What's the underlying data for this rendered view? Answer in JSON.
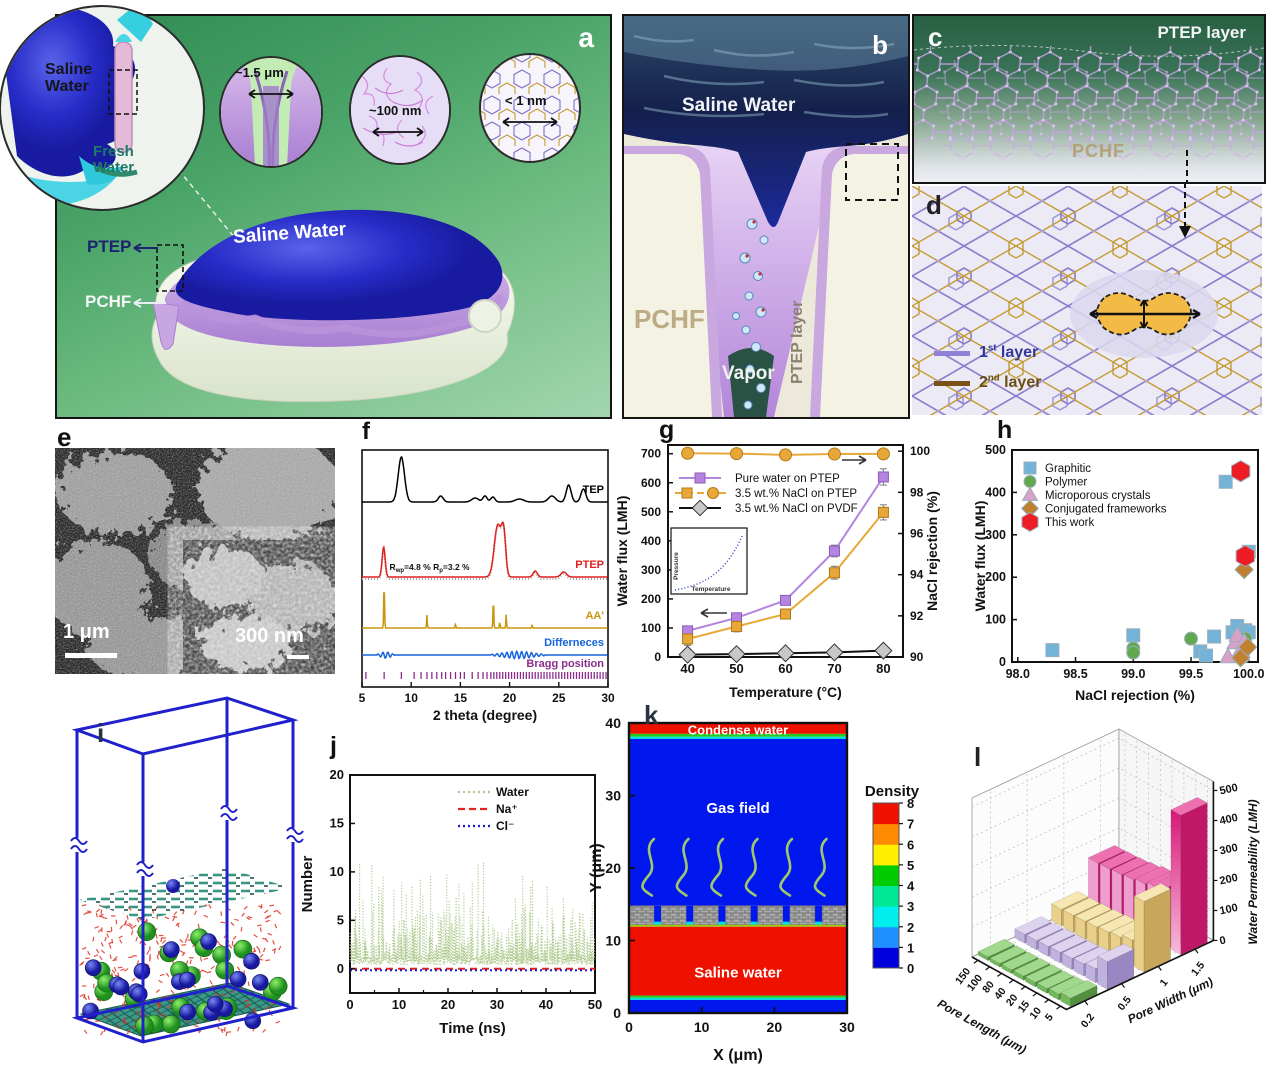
{
  "panel_a": {
    "letter": "a",
    "inset_circle": {
      "saline_label": "Saline\nWater",
      "fresh_label": "Fresh\nWater"
    },
    "zoom_insets": [
      {
        "label": "~1.5 μm"
      },
      {
        "label": "~100 nm"
      },
      {
        "label": "< 1 nm"
      }
    ],
    "membrane_label": "Saline Water",
    "ptep_label": "PTEP",
    "pchf_label": "PCHF"
  },
  "panel_b": {
    "letter": "b",
    "saline_label": "Saline Water",
    "pchf_label": "PCHF",
    "ptep_layer_label": "PTEP layer",
    "vapor_label": "Vapor"
  },
  "panel_c": {
    "letter": "c",
    "ptep_layer_label": "PTEP  layer",
    "pchf_label": "PCHF"
  },
  "panel_d": {
    "letter": "d",
    "legend": [
      {
        "num": "1",
        "sup": "st",
        "rest": " layer",
        "line_color": "#9080d8",
        "text_color": "#31389a"
      },
      {
        "num": "2",
        "sup": "nd",
        "rest": " layer",
        "line_color": "#7a5218",
        "text_color": "#6b4e16"
      }
    ]
  },
  "panel_e": {
    "letter": "e",
    "scalebar_main": "1 μm",
    "scalebar_inset": "300 nm"
  },
  "panel_f": {
    "letter": "f"
  },
  "panel_g": {
    "letter": "g"
  },
  "panel_h": {
    "letter": "h"
  },
  "panel_i": {
    "letter": "i"
  },
  "panel_j": {
    "letter": "j"
  },
  "panel_k": {
    "letter": "k"
  },
  "panel_l": {
    "letter": "l"
  },
  "chart_data": [
    {
      "id": "f",
      "type": "line",
      "xlabel": "2 theta (degree)",
      "xlim": [
        5,
        30
      ],
      "xticks": [
        5,
        10,
        15,
        20,
        25,
        30
      ],
      "traces": [
        {
          "name": "TEP",
          "color": "#000000",
          "baseline": 82,
          "peaks": [
            [
              9.0,
              45,
              0.45
            ],
            [
              13.0,
              6,
              0.35
            ],
            [
              16.5,
              4,
              0.5
            ],
            [
              17.5,
              6,
              0.3
            ],
            [
              18.3,
              5,
              0.3
            ],
            [
              21.0,
              3,
              0.6
            ],
            [
              24.3,
              6,
              0.5
            ],
            [
              26.0,
              17,
              0.35
            ],
            [
              27.5,
              13,
              0.35
            ]
          ]
        },
        {
          "name": "PTEP",
          "color": "#e02020",
          "fit_color": "#a0a0a0",
          "baseline": 157,
          "peaks": [
            [
              7.2,
              30,
              0.22
            ],
            [
              18.8,
              52,
              0.5
            ],
            [
              19.4,
              40,
              0.3
            ],
            [
              22.6,
              6,
              0.3
            ],
            [
              25.5,
              5,
              0.4
            ]
          ],
          "annotation": {
            "r1": "R",
            "r1sub": "wp",
            "r1val": "=4.8 %",
            "r2": "R",
            "r2sub": "p",
            "r2val": "=3.2 %"
          }
        },
        {
          "name": "AA'",
          "color": "#c8960c",
          "baseline": 208,
          "peaks": [
            [
              7.25,
              45,
              0.06
            ],
            [
              11.6,
              13,
              0.05
            ],
            [
              14.5,
              4,
              0.05
            ],
            [
              18.35,
              28,
              0.06
            ],
            [
              19.0,
              6,
              0.05
            ],
            [
              19.65,
              14,
              0.05
            ],
            [
              22.3,
              3,
              0.05
            ]
          ]
        },
        {
          "name": "Differneces",
          "color": "#1464dc",
          "baseline": 235,
          "wiggles": [
            [
              6.5,
              8.3,
              3.2
            ],
            [
              18.1,
              23.6,
              3.6
            ]
          ]
        }
      ],
      "bragg": {
        "name": "Bragg position",
        "color": "#8c2d8c",
        "positions": [
          5.4,
          7.25,
          9.0,
          10.3,
          11.0,
          11.6,
          12.1,
          12.6,
          13.1,
          13.5,
          14.0,
          14.5,
          15.0,
          15.4,
          16.2,
          16.8,
          17.3,
          17.7,
          18.1,
          18.4,
          18.7,
          19.0,
          19.3,
          19.6,
          19.9,
          20.2,
          20.5,
          20.8,
          21.1,
          21.4,
          21.7,
          22.0,
          22.3,
          22.6,
          22.9,
          23.2,
          23.5,
          23.8,
          24.1,
          24.4,
          24.7,
          25.0,
          25.3,
          25.6,
          25.9,
          26.2,
          26.5,
          26.8,
          27.1,
          27.4,
          27.7,
          28.0,
          28.3,
          28.6,
          28.9,
          29.2,
          29.5,
          29.8
        ]
      }
    },
    {
      "id": "g",
      "type": "line",
      "xlabel": "Temperature (°C)",
      "ylabel_left": "Water flux (LMH)",
      "ylabel_right": "NaCl rejection (%)",
      "x": [
        40,
        50,
        60,
        70,
        80
      ],
      "xlim": [
        36,
        84
      ],
      "ylim_left": [
        0,
        730
      ],
      "yticks_left": [
        0,
        100,
        200,
        300,
        400,
        500,
        600,
        700
      ],
      "ylim_right": [
        90,
        100.3
      ],
      "yticks_right": [
        90,
        92,
        94,
        96,
        98,
        100
      ],
      "series": [
        {
          "name": "Pure water on PTEP",
          "marker": "square",
          "color": "#b583e0",
          "axis": "left",
          "values": [
            90,
            135,
            195,
            365,
            620
          ],
          "err": [
            14,
            14,
            14,
            20,
            28
          ]
        },
        {
          "name": "3.5 wt.% NaCl on PTEP",
          "marker": "square",
          "color": "#e8a838",
          "axis": "left",
          "values": [
            62,
            105,
            148,
            290,
            498
          ],
          "err": [
            22,
            18,
            14,
            22,
            26
          ]
        },
        {
          "name": "3.5 wt.% NaCl on PTEP (rejection)",
          "marker": "circle",
          "color": "#e8a838",
          "axis": "right",
          "values": [
            99.9,
            99.88,
            99.82,
            99.86,
            99.87
          ]
        },
        {
          "name": "3.5 wt.% NaCl on PVDF",
          "marker": "diamond",
          "color": "#c8c8c8",
          "line_color": "#111111",
          "axis": "left",
          "values": [
            8,
            10,
            13,
            16,
            22
          ]
        }
      ],
      "legend": [
        "Pure water on PTEP",
        "3.5 wt.% NaCl on PTEP",
        "3.5 wt.% NaCl on PVDF"
      ],
      "inset": {
        "xlabel": "Temperature",
        "ylabel": "Pressure"
      }
    },
    {
      "id": "h",
      "type": "scatter",
      "xlabel": "NaCl rejection (%)",
      "ylabel": "Water flux (LMH)",
      "xlim": [
        97.95,
        100.08
      ],
      "xticks": [
        98.0,
        98.5,
        99.0,
        99.5,
        100.0
      ],
      "ylim": [
        0,
        500
      ],
      "yticks": [
        0,
        100,
        200,
        300,
        400,
        500
      ],
      "series": [
        {
          "name": "Graphitic",
          "marker": "square",
          "color": "#74b3d8",
          "points": [
            [
              98.3,
              28
            ],
            [
              99.0,
              63
            ],
            [
              99.58,
              25
            ],
            [
              99.63,
              15
            ],
            [
              99.7,
              60
            ],
            [
              99.8,
              425
            ],
            [
              99.86,
              70
            ],
            [
              99.9,
              85
            ],
            [
              99.93,
              60
            ],
            [
              99.97,
              75
            ],
            [
              100,
              260
            ],
            [
              100,
              70
            ]
          ]
        },
        {
          "name": "Polymer",
          "marker": "circle",
          "color": "#62a84e",
          "points": [
            [
              99.0,
              32
            ],
            [
              99.0,
              22
            ],
            [
              99.5,
              55
            ],
            [
              99.97,
              55
            ],
            [
              99.98,
              38
            ],
            [
              99.95,
              12
            ]
          ]
        },
        {
          "name": "Microporous crystals",
          "marker": "triangle",
          "color": "#d9a0c8",
          "points": [
            [
              99.82,
              12
            ],
            [
              99.88,
              45
            ],
            [
              99.9,
              62
            ],
            [
              99.93,
              28
            ],
            [
              99.96,
              48
            ]
          ]
        },
        {
          "name": "Conjugated frameworks",
          "marker": "diamond",
          "color": "#c08030",
          "points": [
            [
              99.96,
              218
            ],
            [
              99.93,
              10
            ],
            [
              99.99,
              35
            ]
          ]
        },
        {
          "name": "This work",
          "marker": "hexagon",
          "color": "#ee1c24",
          "points": [
            [
              99.93,
              450
            ],
            [
              99.97,
              250
            ]
          ]
        }
      ]
    },
    {
      "id": "j",
      "type": "line",
      "xlabel": "Time (ns)",
      "ylabel": "Number",
      "xlim": [
        0,
        50
      ],
      "xticks": [
        0,
        10,
        20,
        30,
        40,
        50
      ],
      "ylim": [
        -2.5,
        20
      ],
      "yticks": [
        0,
        5,
        10,
        15,
        20
      ],
      "series": [
        {
          "name": "Water",
          "color": "#aec98c",
          "style": "dotted",
          "range": [
            0,
            11
          ],
          "mean": 5
        },
        {
          "name": "Na⁺",
          "color": "#e8241c",
          "style": "dashed",
          "value": 0
        },
        {
          "name": "Cl⁻",
          "color": "#1818cc",
          "style": "dotted",
          "value": 0
        }
      ],
      "seed": 7
    },
    {
      "id": "k",
      "type": "heatmap",
      "xlabel": "X (μm)",
      "ylabel": "Y (μm)",
      "xlim": [
        0,
        30
      ],
      "xticks": [
        0,
        10,
        20,
        30
      ],
      "ylim": [
        0,
        40
      ],
      "yticks": [
        0,
        10,
        20,
        30,
        40
      ],
      "regions": [
        {
          "label": "Condense water",
          "y": [
            38.5,
            40
          ],
          "color": "#ee1100"
        },
        {
          "label": "",
          "y": [
            38.1,
            38.5
          ],
          "color": "#22cc22"
        },
        {
          "label": "",
          "y": [
            37.8,
            38.1
          ],
          "color": "#00e0e0"
        },
        {
          "label": "Gas field",
          "y": [
            14.8,
            37.8
          ],
          "color": "#0018ee"
        },
        {
          "label": "",
          "y": [
            11.9,
            12.2
          ],
          "color": "#9acd00"
        },
        {
          "label": "Saline water",
          "y": [
            2.4,
            11.9
          ],
          "color": "#ee1100"
        },
        {
          "label": "",
          "y": [
            2.1,
            2.4
          ],
          "color": "#22cc22"
        },
        {
          "label": "",
          "y": [
            1.8,
            2.1
          ],
          "color": "#00e0e0"
        },
        {
          "label": "",
          "y": [
            0,
            1.8
          ],
          "color": "#0018ee"
        }
      ],
      "membrane": {
        "blocks": 7,
        "block_width": 3.43,
        "gap": 1.0,
        "y": [
          12.2,
          14.8
        ],
        "color": "#b0b0b0"
      },
      "squiggles": {
        "count": 6,
        "color": "#9ec86a"
      },
      "colorbar": {
        "title": "Density",
        "ticks": [
          0,
          1,
          2,
          3,
          4,
          5,
          6,
          7,
          8
        ],
        "colors": [
          "#0000dd",
          "#1e90ff",
          "#00eeee",
          "#00e896",
          "#00cc00",
          "#ffee00",
          "#ff8c00",
          "#ee1100"
        ]
      }
    },
    {
      "id": "l",
      "type": "bar",
      "xlabel": "Pore Length (μm)",
      "ylabel": "Pore Width (μm)",
      "zlabel": "Water Permeability (LMH)",
      "length_ticks": [
        "150",
        "100",
        "80",
        "40",
        "20",
        "15",
        "10",
        "5"
      ],
      "width_ticks": [
        "0.2",
        "0.5",
        "1",
        "1.5"
      ],
      "zlim": [
        0,
        500
      ],
      "zticks": [
        0,
        100,
        200,
        300,
        400,
        500
      ],
      "series": [
        {
          "width": "0.2",
          "front": "#74b85c",
          "top": "#a0d88c",
          "side": "#528f3e",
          "values": [
            12,
            12,
            13,
            14,
            15,
            16,
            19,
            28
          ]
        },
        {
          "width": "0.5",
          "front": "#c0b2de",
          "top": "#ddd3ee",
          "side": "#9887c2",
          "values": [
            30,
            31,
            33,
            35,
            37,
            40,
            46,
            92
          ]
        },
        {
          "width": "1",
          "front": "#e9d08a",
          "top": "#f6e7b2",
          "side": "#c6a75c",
          "values": [
            56,
            57,
            59,
            62,
            66,
            72,
            84,
            235
          ]
        },
        {
          "width": "1.5",
          "front": "#ef9cce",
          "front2": "#d81878",
          "top": "#ee70b0",
          "side": "#c01868",
          "values": [
            152,
            154,
            157,
            162,
            170,
            180,
            205,
            465
          ]
        }
      ]
    }
  ]
}
